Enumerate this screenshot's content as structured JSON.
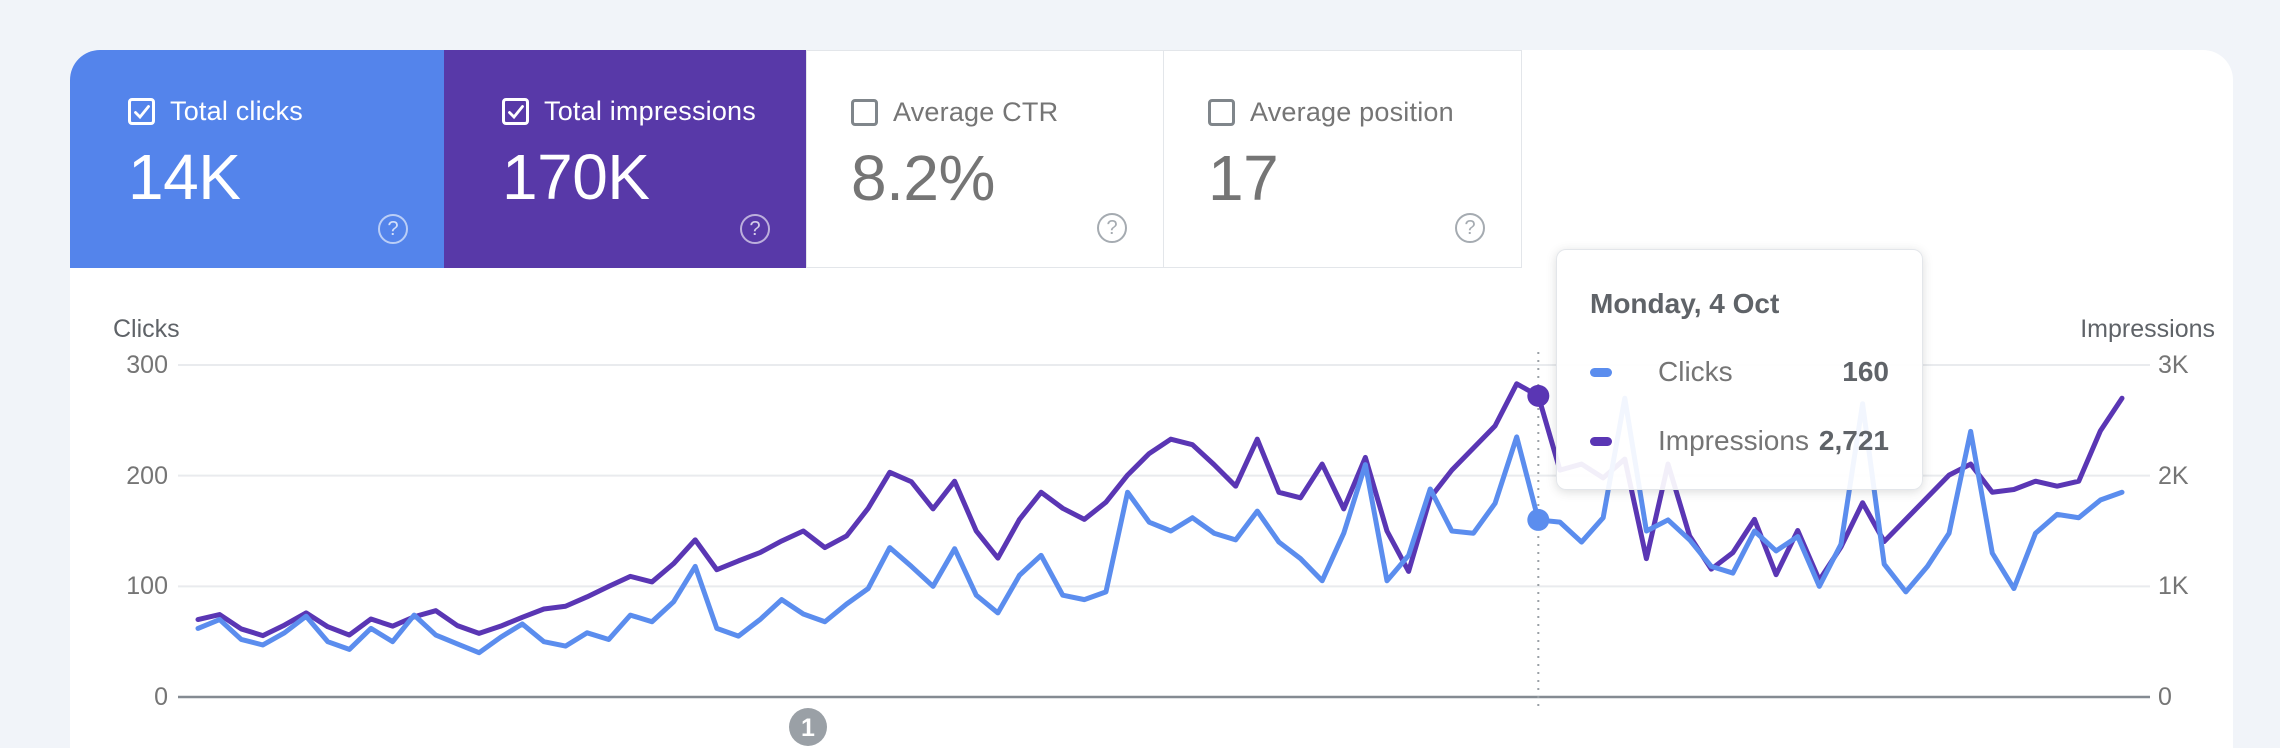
{
  "page": {
    "background_color": "#F1F4F9",
    "panel_color": "#FFFFFF"
  },
  "metric_cards": [
    {
      "label": "Total clicks",
      "value": "14K",
      "state": "selected",
      "color": "#5484EB",
      "help_icon": "?"
    },
    {
      "label": "Total impressions",
      "value": "170K",
      "state": "selected",
      "color": "#5839A8",
      "help_icon": "?"
    },
    {
      "label": "Average CTR",
      "value": "8.2%",
      "state": "unselected",
      "help_icon": "?"
    },
    {
      "label": "Average position",
      "value": "17",
      "state": "unselected",
      "help_icon": "?"
    }
  ],
  "tooltip": {
    "date": "Monday, 4 Oct",
    "rows": [
      {
        "label": "Clicks",
        "value": "160",
        "color": "#5B8DEE"
      },
      {
        "label": "Impressions",
        "value": "2,721",
        "color": "#5A36B4"
      }
    ]
  },
  "annotation_marker": {
    "label": "1"
  },
  "chart_data": {
    "type": "line",
    "x_description": "90 consecutive daily points over a 3-month window; hovered point is index 62 = Monday, 4 Oct",
    "grid": true,
    "legend_position": "in hover tooltip",
    "left_axis": {
      "title": "Clicks",
      "range": [
        0,
        300
      ],
      "ticks": [
        {
          "value": 0,
          "label": "0"
        },
        {
          "value": 100,
          "label": "100"
        },
        {
          "value": 200,
          "label": "200"
        },
        {
          "value": 300,
          "label": "300"
        }
      ]
    },
    "right_axis": {
      "title": "Impressions",
      "range": [
        0,
        3000
      ],
      "ticks": [
        {
          "value": 0,
          "label": "0"
        },
        {
          "value": 1000,
          "label": "1K"
        },
        {
          "value": 2000,
          "label": "2K"
        },
        {
          "value": 3000,
          "label": "3K"
        }
      ]
    },
    "hover_point": {
      "index": 62,
      "date": "Monday, 4 Oct",
      "clicks": 160,
      "impressions": 2721
    },
    "series": [
      {
        "name": "Clicks",
        "axis": "left",
        "color": "#5B8DEE",
        "values": [
          62,
          70,
          52,
          47,
          58,
          73,
          50,
          43,
          62,
          50,
          74,
          56,
          48,
          40,
          54,
          66,
          50,
          46,
          58,
          52,
          74,
          68,
          86,
          118,
          62,
          55,
          70,
          88,
          75,
          68,
          84,
          98,
          135,
          118,
          100,
          134,
          92,
          76,
          110,
          128,
          92,
          88,
          95,
          185,
          158,
          150,
          162,
          148,
          142,
          168,
          140,
          125,
          105,
          148,
          210,
          105,
          128,
          188,
          150,
          148,
          175,
          235,
          160,
          158,
          140,
          162,
          270,
          150,
          160,
          142,
          118,
          112,
          150,
          132,
          145,
          100,
          138,
          265,
          120,
          95,
          118,
          148,
          240,
          130,
          98,
          148,
          165,
          162,
          178,
          185
        ]
      },
      {
        "name": "Impressions",
        "axis": "right",
        "color": "#5A36B4",
        "values": [
          700,
          745,
          615,
          555,
          650,
          760,
          635,
          560,
          705,
          640,
          725,
          780,
          645,
          575,
          640,
          720,
          795,
          820,
          905,
          1000,
          1090,
          1040,
          1205,
          1420,
          1150,
          1230,
          1305,
          1410,
          1500,
          1350,
          1455,
          1705,
          2030,
          1945,
          1700,
          1950,
          1500,
          1255,
          1605,
          1850,
          1705,
          1605,
          1760,
          2005,
          2200,
          2330,
          2280,
          2100,
          1905,
          2330,
          1850,
          1800,
          2105,
          1700,
          2165,
          1500,
          1135,
          1800,
          2050,
          2250,
          2450,
          2830,
          2721,
          2050,
          2105,
          1980,
          2150,
          1250,
          2105,
          1455,
          1155,
          1305,
          1605,
          1105,
          1505,
          1055,
          1355,
          1755,
          1405,
          1605,
          1805,
          2005,
          2105,
          1850,
          1875,
          1950,
          1905,
          1950,
          2405,
          2700
        ]
      }
    ]
  }
}
